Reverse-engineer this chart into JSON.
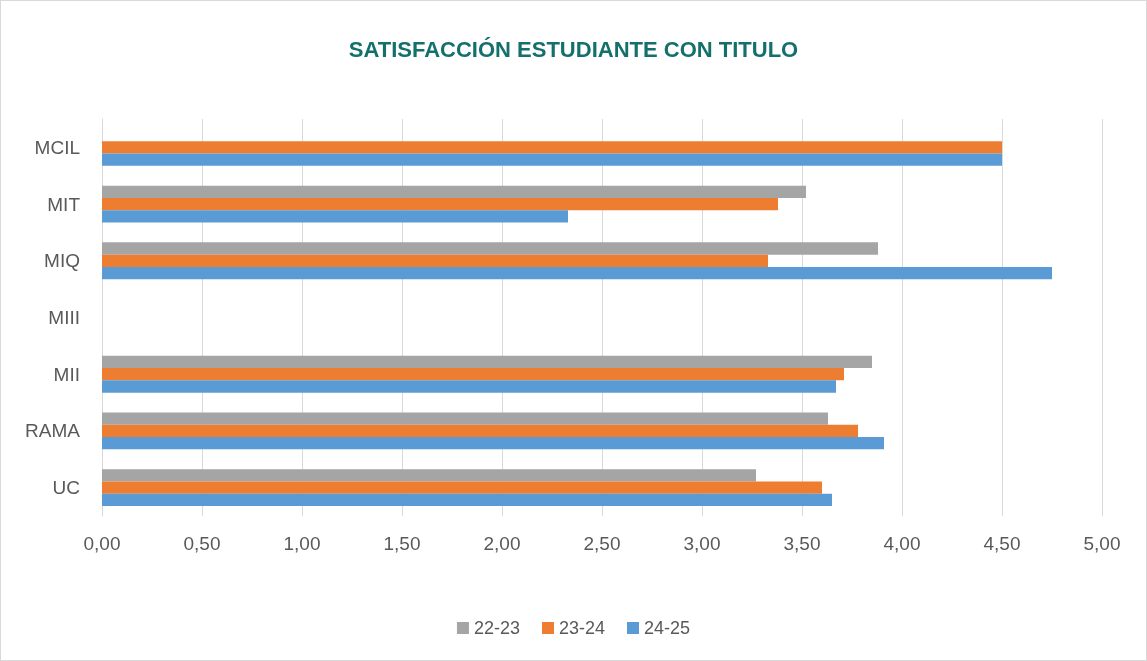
{
  "chart_data": {
    "type": "bar",
    "orientation": "horizontal",
    "title": "SATISFACCIÓN ESTUDIANTE CON TITULO",
    "categories": [
      "MCIL",
      "MIT",
      "MIQ",
      "MIII",
      "MII",
      "RAMA",
      "UC"
    ],
    "series": [
      {
        "name": "22-23",
        "color": "#a5a5a5",
        "values": [
          null,
          3.52,
          3.88,
          null,
          3.85,
          3.63,
          3.27
        ]
      },
      {
        "name": "23-24",
        "color": "#ed7d31",
        "values": [
          4.5,
          3.38,
          3.33,
          null,
          3.71,
          3.78,
          3.6
        ]
      },
      {
        "name": "24-25",
        "color": "#5b9bd5",
        "values": [
          4.5,
          2.33,
          4.75,
          null,
          3.67,
          3.91,
          3.65
        ]
      }
    ],
    "xlim": [
      0,
      5
    ],
    "xticks": [
      {
        "value": 0,
        "label": "0,00"
      },
      {
        "value": 0.5,
        "label": "0,50"
      },
      {
        "value": 1,
        "label": "1,00"
      },
      {
        "value": 1.5,
        "label": "1,50"
      },
      {
        "value": 2,
        "label": "2,00"
      },
      {
        "value": 2.5,
        "label": "2,50"
      },
      {
        "value": 3,
        "label": "3,00"
      },
      {
        "value": 3.5,
        "label": "3,50"
      },
      {
        "value": 4,
        "label": "4,00"
      },
      {
        "value": 4.5,
        "label": "4,50"
      },
      {
        "value": 5,
        "label": "5,00"
      }
    ],
    "grid": "x",
    "legend": "bottom"
  }
}
